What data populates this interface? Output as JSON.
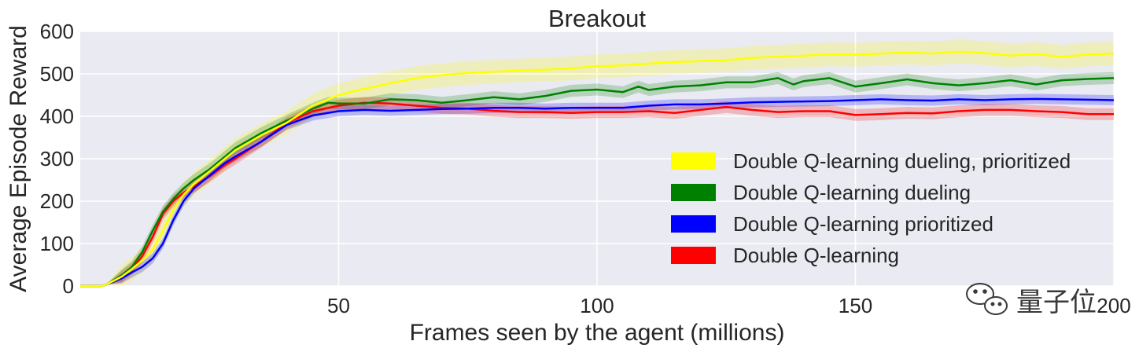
{
  "chart_data": {
    "type": "line",
    "title": "Breakout",
    "xlabel": "Frames seen by the agent (millions)",
    "ylabel": "Average Episode Reward",
    "xlim": [
      0,
      200
    ],
    "ylim": [
      0,
      600
    ],
    "xticks": [
      50,
      100,
      150,
      200
    ],
    "yticks": [
      0,
      100,
      200,
      300,
      400,
      500,
      600
    ],
    "grid": true,
    "legend_position": "right, lower-middle",
    "series": [
      {
        "name": "Double Q-learning dueling, prioritized",
        "color": "#ffff00",
        "band": 28,
        "points": [
          [
            0,
            0
          ],
          [
            4,
            0
          ],
          [
            5,
            3
          ],
          [
            8,
            22
          ],
          [
            10,
            40
          ],
          [
            12,
            60
          ],
          [
            14,
            85
          ],
          [
            16,
            130
          ],
          [
            18,
            180
          ],
          [
            20,
            215
          ],
          [
            22,
            240
          ],
          [
            25,
            270
          ],
          [
            28,
            300
          ],
          [
            30,
            320
          ],
          [
            35,
            355
          ],
          [
            40,
            385
          ],
          [
            45,
            425
          ],
          [
            50,
            450
          ],
          [
            55,
            465
          ],
          [
            60,
            478
          ],
          [
            65,
            490
          ],
          [
            70,
            497
          ],
          [
            75,
            502
          ],
          [
            80,
            505
          ],
          [
            85,
            508
          ],
          [
            90,
            510
          ],
          [
            95,
            513
          ],
          [
            100,
            518
          ],
          [
            105,
            520
          ],
          [
            110,
            524
          ],
          [
            115,
            528
          ],
          [
            120,
            530
          ],
          [
            125,
            532
          ],
          [
            130,
            538
          ],
          [
            135,
            540
          ],
          [
            140,
            543
          ],
          [
            145,
            546
          ],
          [
            150,
            545
          ],
          [
            155,
            548
          ],
          [
            160,
            550
          ],
          [
            165,
            548
          ],
          [
            170,
            552
          ],
          [
            175,
            549
          ],
          [
            180,
            543
          ],
          [
            185,
            547
          ],
          [
            190,
            540
          ],
          [
            195,
            546
          ],
          [
            200,
            548
          ]
        ]
      },
      {
        "name": "Double Q-learning dueling",
        "color": "#008000",
        "band": 14,
        "points": [
          [
            0,
            0
          ],
          [
            4,
            0
          ],
          [
            5,
            3
          ],
          [
            8,
            25
          ],
          [
            10,
            45
          ],
          [
            12,
            80
          ],
          [
            14,
            130
          ],
          [
            16,
            175
          ],
          [
            18,
            205
          ],
          [
            20,
            230
          ],
          [
            22,
            250
          ],
          [
            25,
            275
          ],
          [
            28,
            305
          ],
          [
            30,
            325
          ],
          [
            35,
            360
          ],
          [
            40,
            390
          ],
          [
            45,
            418
          ],
          [
            48,
            432
          ],
          [
            50,
            430
          ],
          [
            55,
            430
          ],
          [
            60,
            440
          ],
          [
            65,
            438
          ],
          [
            70,
            432
          ],
          [
            75,
            438
          ],
          [
            80,
            445
          ],
          [
            85,
            440
          ],
          [
            90,
            448
          ],
          [
            95,
            460
          ],
          [
            100,
            463
          ],
          [
            105,
            457
          ],
          [
            108,
            470
          ],
          [
            110,
            462
          ],
          [
            115,
            470
          ],
          [
            120,
            473
          ],
          [
            125,
            480
          ],
          [
            130,
            480
          ],
          [
            135,
            490
          ],
          [
            138,
            475
          ],
          [
            140,
            483
          ],
          [
            145,
            490
          ],
          [
            150,
            470
          ],
          [
            155,
            478
          ],
          [
            160,
            487
          ],
          [
            165,
            478
          ],
          [
            170,
            473
          ],
          [
            175,
            478
          ],
          [
            180,
            485
          ],
          [
            185,
            475
          ],
          [
            190,
            485
          ],
          [
            195,
            488
          ],
          [
            200,
            490
          ]
        ]
      },
      {
        "name": "Double Q-learning prioritized",
        "color": "#0000ff",
        "band": 12,
        "points": [
          [
            0,
            0
          ],
          [
            4,
            0
          ],
          [
            5,
            3
          ],
          [
            8,
            18
          ],
          [
            10,
            32
          ],
          [
            12,
            45
          ],
          [
            14,
            65
          ],
          [
            16,
            100
          ],
          [
            18,
            155
          ],
          [
            20,
            200
          ],
          [
            22,
            230
          ],
          [
            25,
            260
          ],
          [
            28,
            290
          ],
          [
            30,
            305
          ],
          [
            35,
            340
          ],
          [
            40,
            380
          ],
          [
            45,
            402
          ],
          [
            50,
            412
          ],
          [
            55,
            415
          ],
          [
            60,
            413
          ],
          [
            65,
            415
          ],
          [
            70,
            417
          ],
          [
            75,
            418
          ],
          [
            80,
            420
          ],
          [
            85,
            420
          ],
          [
            90,
            418
          ],
          [
            95,
            420
          ],
          [
            100,
            420
          ],
          [
            105,
            420
          ],
          [
            110,
            425
          ],
          [
            115,
            428
          ],
          [
            120,
            428
          ],
          [
            125,
            430
          ],
          [
            130,
            433
          ],
          [
            135,
            434
          ],
          [
            140,
            435
          ],
          [
            145,
            436
          ],
          [
            150,
            438
          ],
          [
            155,
            440
          ],
          [
            160,
            438
          ],
          [
            165,
            437
          ],
          [
            170,
            440
          ],
          [
            175,
            438
          ],
          [
            180,
            440
          ],
          [
            185,
            441
          ],
          [
            190,
            440
          ],
          [
            195,
            439
          ],
          [
            200,
            438
          ]
        ]
      },
      {
        "name": "Double Q-learning",
        "color": "#ff0000",
        "band": 14,
        "points": [
          [
            0,
            0
          ],
          [
            4,
            0
          ],
          [
            5,
            3
          ],
          [
            8,
            22
          ],
          [
            10,
            40
          ],
          [
            12,
            70
          ],
          [
            14,
            115
          ],
          [
            16,
            170
          ],
          [
            18,
            200
          ],
          [
            20,
            220
          ],
          [
            22,
            235
          ],
          [
            25,
            258
          ],
          [
            28,
            285
          ],
          [
            30,
            300
          ],
          [
            35,
            340
          ],
          [
            40,
            385
          ],
          [
            45,
            412
          ],
          [
            50,
            425
          ],
          [
            55,
            432
          ],
          [
            60,
            430
          ],
          [
            65,
            425
          ],
          [
            70,
            420
          ],
          [
            75,
            418
          ],
          [
            80,
            413
          ],
          [
            85,
            410
          ],
          [
            90,
            410
          ],
          [
            95,
            408
          ],
          [
            100,
            410
          ],
          [
            105,
            410
          ],
          [
            110,
            412
          ],
          [
            115,
            408
          ],
          [
            120,
            415
          ],
          [
            125,
            422
          ],
          [
            130,
            415
          ],
          [
            135,
            410
          ],
          [
            140,
            412
          ],
          [
            145,
            412
          ],
          [
            150,
            403
          ],
          [
            155,
            405
          ],
          [
            160,
            408
          ],
          [
            165,
            407
          ],
          [
            170,
            412
          ],
          [
            175,
            415
          ],
          [
            180,
            415
          ],
          [
            185,
            412
          ],
          [
            190,
            410
          ],
          [
            195,
            405
          ],
          [
            200,
            405
          ]
        ]
      }
    ]
  },
  "watermark": {
    "text": "量子位",
    "icon": "wechat-icon"
  }
}
